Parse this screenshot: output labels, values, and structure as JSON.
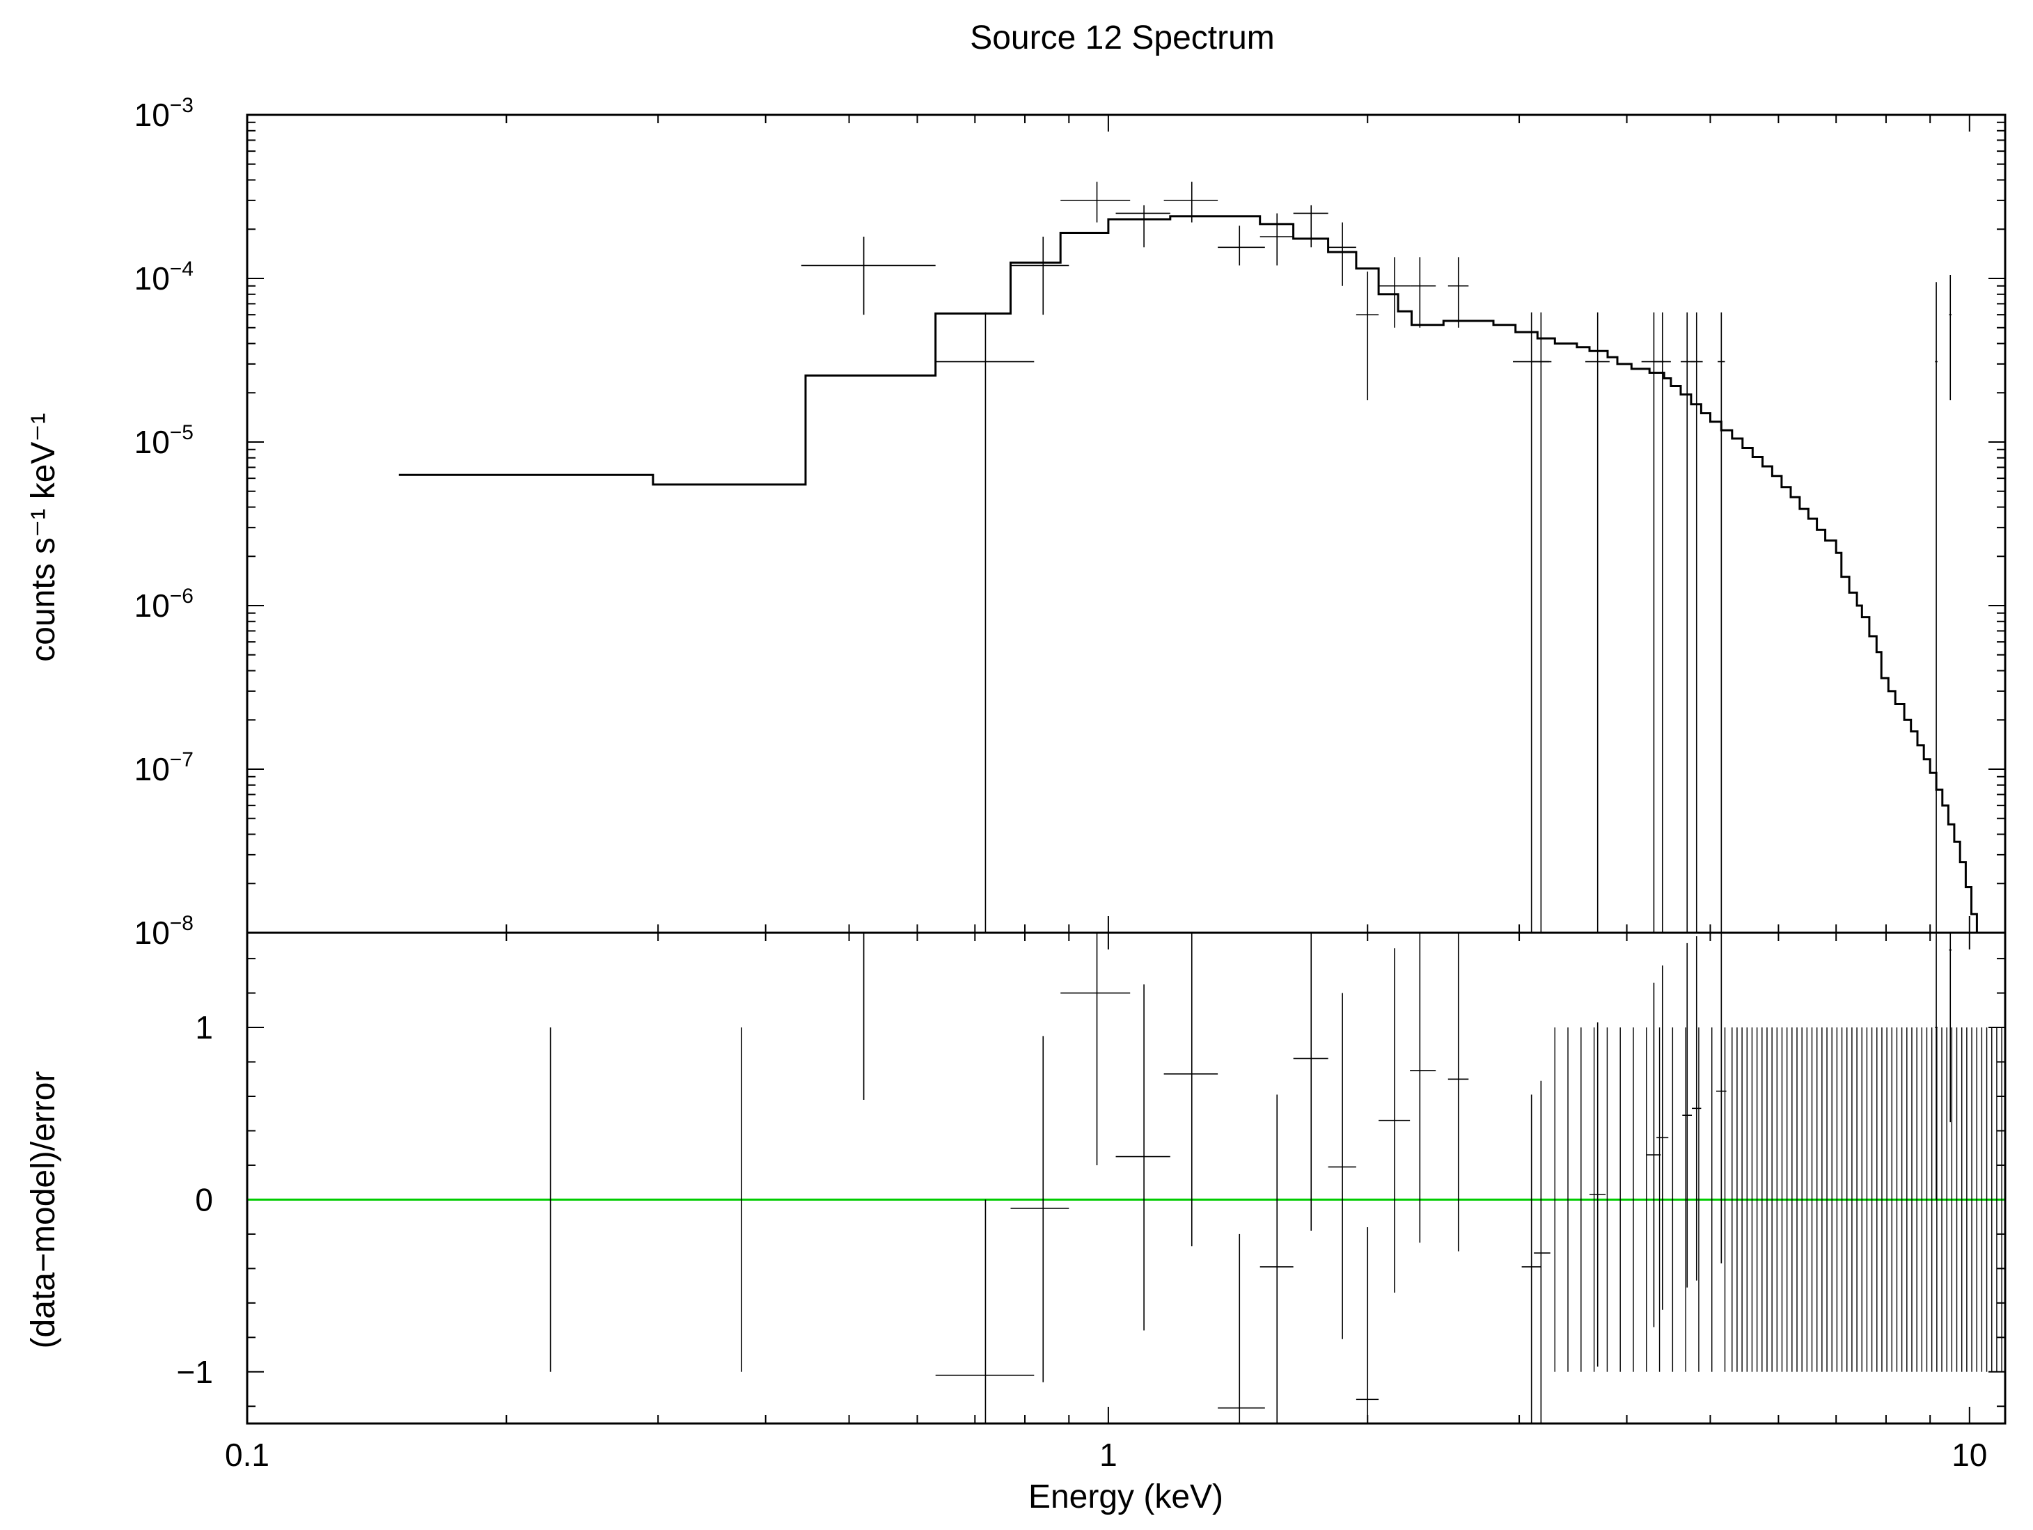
{
  "chart_data": {
    "type": "scatter",
    "title": "Source 12 Spectrum",
    "xlabel": "Energy (keV)",
    "x_scale": "log",
    "xlim": [
      0.1,
      11
    ],
    "x_ticks": [
      {
        "label": "0.1",
        "value": 0.1
      },
      {
        "label": "1",
        "value": 1
      },
      {
        "label": "10",
        "value": 10
      }
    ],
    "top_panel": {
      "ylabel": "counts s⁻¹ keV⁻¹",
      "y_scale": "log",
      "ylim": [
        1e-08,
        0.001
      ],
      "y_ticks": [
        {
          "base": "10",
          "exp": "−3",
          "value": 0.001
        },
        {
          "base": "10",
          "exp": "−4",
          "value": 0.0001
        },
        {
          "base": "10",
          "exp": "−5",
          "value": 1e-05
        },
        {
          "base": "10",
          "exp": "−6",
          "value": 1e-06
        },
        {
          "base": "10",
          "exp": "−7",
          "value": 1e-07
        },
        {
          "base": "10",
          "exp": "−8",
          "value": 1e-08
        }
      ],
      "data": [
        {
          "x": 0.52,
          "xlo": 0.44,
          "xhi": 0.63,
          "y": 0.00012,
          "ylo": 6e-05,
          "yhi": 0.00018
        },
        {
          "x": 0.72,
          "xlo": 0.63,
          "xhi": 0.82,
          "y": 3.1e-05,
          "ylo": 1e-08,
          "yhi": 6.2e-05
        },
        {
          "x": 0.84,
          "xlo": 0.77,
          "xhi": 0.9,
          "y": 0.00012,
          "ylo": 6e-05,
          "yhi": 0.00018
        },
        {
          "x": 0.97,
          "xlo": 0.88,
          "xhi": 1.06,
          "y": 0.0003,
          "ylo": 0.00022,
          "yhi": 0.00039
        },
        {
          "x": 1.1,
          "xlo": 1.02,
          "xhi": 1.18,
          "y": 0.00025,
          "ylo": 0.000155,
          "yhi": 0.00028
        },
        {
          "x": 1.25,
          "xlo": 1.16,
          "xhi": 1.34,
          "y": 0.0003,
          "ylo": 0.00022,
          "yhi": 0.00039
        },
        {
          "x": 1.42,
          "xlo": 1.34,
          "xhi": 1.52,
          "y": 0.000155,
          "ylo": 0.00012,
          "yhi": 0.00021
        },
        {
          "x": 1.57,
          "xlo": 1.5,
          "xhi": 1.64,
          "y": 0.00018,
          "ylo": 0.00012,
          "yhi": 0.00025
        },
        {
          "x": 1.72,
          "xlo": 1.64,
          "xhi": 1.8,
          "y": 0.00025,
          "ylo": 0.000155,
          "yhi": 0.00028
        },
        {
          "x": 1.87,
          "xlo": 1.8,
          "xhi": 1.94,
          "y": 0.000155,
          "ylo": 9e-05,
          "yhi": 0.00022
        },
        {
          "x": 2.0,
          "xlo": 1.94,
          "xhi": 2.06,
          "y": 6e-05,
          "ylo": 1.8e-05,
          "yhi": 0.00011
        },
        {
          "x": 2.15,
          "xlo": 2.06,
          "xhi": 2.24,
          "y": 9e-05,
          "ylo": 5e-05,
          "yhi": 0.000135
        },
        {
          "x": 2.3,
          "xlo": 2.24,
          "xhi": 2.4,
          "y": 9e-05,
          "ylo": 5e-05,
          "yhi": 0.000135
        },
        {
          "x": 2.55,
          "xlo": 2.48,
          "xhi": 2.62,
          "y": 9e-05,
          "ylo": 5e-05,
          "yhi": 0.000135
        },
        {
          "x": 3.1,
          "xlo": 2.95,
          "xhi": 3.25,
          "y": 3.1e-05,
          "ylo": 1e-08,
          "yhi": 6.2e-05
        },
        {
          "x": 3.18,
          "xlo": 3.1,
          "xhi": 3.27,
          "y": 3.1e-05,
          "ylo": 1e-08,
          "yhi": 6.2e-05
        },
        {
          "x": 3.7,
          "xlo": 3.58,
          "xhi": 3.82,
          "y": 3.1e-05,
          "ylo": 1e-08,
          "yhi": 6.2e-05
        },
        {
          "x": 4.3,
          "xlo": 4.16,
          "xhi": 4.42,
          "y": 3.1e-05,
          "ylo": 1e-08,
          "yhi": 6.2e-05
        },
        {
          "x": 4.4,
          "xlo": 4.3,
          "xhi": 4.5,
          "y": 3.1e-05,
          "ylo": 1e-08,
          "yhi": 6.2e-05
        },
        {
          "x": 4.7,
          "xlo": 4.62,
          "xhi": 4.8,
          "y": 3.1e-05,
          "ylo": 1e-08,
          "yhi": 6.2e-05
        },
        {
          "x": 4.82,
          "xlo": 4.74,
          "xhi": 4.9,
          "y": 3.1e-05,
          "ylo": 1e-08,
          "yhi": 6.2e-05
        },
        {
          "x": 5.15,
          "xlo": 5.1,
          "xhi": 5.2,
          "y": 3.1e-05,
          "ylo": 1e-08,
          "yhi": 6.2e-05
        },
        {
          "x": 9.15,
          "xlo": 9.12,
          "xhi": 9.18,
          "y": 3.1e-05,
          "ylo": 1e-08,
          "yhi": 9.5e-05
        },
        {
          "x": 9.5,
          "xlo": 9.47,
          "xhi": 9.53,
          "y": 6e-05,
          "ylo": 1.8e-05,
          "yhi": 0.000105
        }
      ],
      "model_step": [
        [
          0.15,
          6.3e-06
        ],
        [
          0.296,
          6.3e-06
        ],
        [
          0.296,
          5.5e-06
        ],
        [
          0.445,
          5.5e-06
        ],
        [
          0.445,
          2.55e-05
        ],
        [
          0.63,
          2.55e-05
        ],
        [
          0.63,
          6.1e-05
        ],
        [
          0.77,
          6.1e-05
        ],
        [
          0.77,
          0.000125
        ],
        [
          0.88,
          0.000125
        ],
        [
          0.88,
          0.00019
        ],
        [
          1.0,
          0.00019
        ],
        [
          1.0,
          0.00023
        ],
        [
          1.18,
          0.00023
        ],
        [
          1.18,
          0.00024
        ],
        [
          1.5,
          0.00024
        ],
        [
          1.5,
          0.000215
        ],
        [
          1.64,
          0.000215
        ],
        [
          1.64,
          0.000175
        ],
        [
          1.8,
          0.000175
        ],
        [
          1.8,
          0.000145
        ],
        [
          1.94,
          0.000145
        ],
        [
          1.94,
          0.000115
        ],
        [
          2.06,
          0.000115
        ],
        [
          2.06,
          8e-05
        ],
        [
          2.17,
          8e-05
        ],
        [
          2.17,
          6.3e-05
        ],
        [
          2.25,
          6.3e-05
        ],
        [
          2.25,
          5.2e-05
        ],
        [
          2.45,
          5.2e-05
        ],
        [
          2.45,
          5.5e-05
        ],
        [
          2.8,
          5.5e-05
        ],
        [
          2.8,
          5.2e-05
        ],
        [
          2.97,
          5.2e-05
        ],
        [
          2.97,
          4.7e-05
        ],
        [
          3.15,
          4.7e-05
        ],
        [
          3.15,
          4.3e-05
        ],
        [
          3.3,
          4.3e-05
        ],
        [
          3.3,
          4e-05
        ],
        [
          3.5,
          4e-05
        ],
        [
          3.5,
          3.8e-05
        ],
        [
          3.62,
          3.8e-05
        ],
        [
          3.62,
          3.6e-05
        ],
        [
          3.8,
          3.6e-05
        ],
        [
          3.8,
          3.3e-05
        ],
        [
          3.9,
          3.3e-05
        ],
        [
          3.9,
          3e-05
        ],
        [
          4.05,
          3e-05
        ],
        [
          4.05,
          2.8e-05
        ],
        [
          4.25,
          2.8e-05
        ],
        [
          4.25,
          2.65e-05
        ],
        [
          4.42,
          2.65e-05
        ],
        [
          4.42,
          2.45e-05
        ],
        [
          4.5,
          2.45e-05
        ],
        [
          4.5,
          2.2e-05
        ],
        [
          4.62,
          2.2e-05
        ],
        [
          4.62,
          1.95e-05
        ],
        [
          4.75,
          1.95e-05
        ],
        [
          4.75,
          1.7e-05
        ],
        [
          4.88,
          1.7e-05
        ],
        [
          4.88,
          1.5e-05
        ],
        [
          5.0,
          1.5e-05
        ],
        [
          5.0,
          1.33e-05
        ],
        [
          5.15,
          1.33e-05
        ],
        [
          5.15,
          1.18e-05
        ],
        [
          5.3,
          1.18e-05
        ],
        [
          5.3,
          1.05e-05
        ],
        [
          5.45,
          1.05e-05
        ],
        [
          5.45,
          9.2e-06
        ],
        [
          5.6,
          9.2e-06
        ],
        [
          5.6,
          8.1e-06
        ],
        [
          5.75,
          8.1e-06
        ],
        [
          5.75,
          7.1e-06
        ],
        [
          5.9,
          7.1e-06
        ],
        [
          5.9,
          6.2e-06
        ],
        [
          6.05,
          6.2e-06
        ],
        [
          6.05,
          5.3e-06
        ],
        [
          6.2,
          5.3e-06
        ],
        [
          6.2,
          4.6e-06
        ],
        [
          6.35,
          4.6e-06
        ],
        [
          6.35,
          3.9e-06
        ],
        [
          6.5,
          3.9e-06
        ],
        [
          6.5,
          3.4e-06
        ],
        [
          6.65,
          3.4e-06
        ],
        [
          6.65,
          2.9e-06
        ],
        [
          6.8,
          2.9e-06
        ],
        [
          6.8,
          2.5e-06
        ],
        [
          7.0,
          2.5e-06
        ],
        [
          7.0,
          2.1e-06
        ],
        [
          7.1,
          2.1e-06
        ],
        [
          7.1,
          1.5e-06
        ],
        [
          7.25,
          1.5e-06
        ],
        [
          7.25,
          1.2e-06
        ],
        [
          7.4,
          1.2e-06
        ],
        [
          7.4,
          1e-06
        ],
        [
          7.5,
          1e-06
        ],
        [
          7.5,
          8.5e-07
        ],
        [
          7.65,
          8.5e-07
        ],
        [
          7.65,
          6.5e-07
        ],
        [
          7.8,
          6.5e-07
        ],
        [
          7.8,
          5.2e-07
        ],
        [
          7.9,
          5.2e-07
        ],
        [
          7.9,
          3.6e-07
        ],
        [
          8.05,
          3.6e-07
        ],
        [
          8.05,
          3e-07
        ],
        [
          8.2,
          3e-07
        ],
        [
          8.2,
          2.5e-07
        ],
        [
          8.4,
          2.5e-07
        ],
        [
          8.4,
          2e-07
        ],
        [
          8.55,
          2e-07
        ],
        [
          8.55,
          1.7e-07
        ],
        [
          8.7,
          1.7e-07
        ],
        [
          8.7,
          1.4e-07
        ],
        [
          8.85,
          1.4e-07
        ],
        [
          8.85,
          1.15e-07
        ],
        [
          9.0,
          1.15e-07
        ],
        [
          9.0,
          9.5e-08
        ],
        [
          9.15,
          9.5e-08
        ],
        [
          9.15,
          7.5e-08
        ],
        [
          9.3,
          7.5e-08
        ],
        [
          9.3,
          6e-08
        ],
        [
          9.45,
          6e-08
        ],
        [
          9.45,
          4.6e-08
        ],
        [
          9.6,
          4.6e-08
        ],
        [
          9.6,
          3.6e-08
        ],
        [
          9.75,
          3.6e-08
        ],
        [
          9.75,
          2.7e-08
        ],
        [
          9.9,
          2.7e-08
        ],
        [
          9.9,
          1.9e-08
        ],
        [
          10.05,
          1.9e-08
        ],
        [
          10.05,
          1.3e-08
        ],
        [
          10.2,
          1.3e-08
        ],
        [
          10.2,
          1e-08
        ]
      ]
    },
    "bottom_panel": {
      "ylabel": "(data−model)/error",
      "ylim": [
        -1.3,
        1.55
      ],
      "y_ticks": [
        {
          "label": "1",
          "value": 1
        },
        {
          "label": "0",
          "value": 0
        },
        {
          "label": "−1",
          "value": -1
        }
      ],
      "zero_line_color": "#00cc00",
      "residuals": [
        {
          "x": 0.225,
          "y": 0.0,
          "ylo": -1.0,
          "yhi": 1.0,
          "xlo": 0.225,
          "xhi": 0.225
        },
        {
          "x": 0.375,
          "y": 0.0,
          "ylo": -1.0,
          "yhi": 1.0,
          "xlo": 0.375,
          "xhi": 0.375
        },
        {
          "x": 0.52,
          "y": 1.6,
          "ylo": 0.58,
          "yhi": 1.6,
          "xlo": 0.44,
          "xhi": 0.63
        },
        {
          "x": 0.72,
          "y": -1.02,
          "ylo": -1.3,
          "yhi": 0.0,
          "xlo": 0.63,
          "xhi": 0.82
        },
        {
          "x": 0.84,
          "y": -0.05,
          "ylo": -1.06,
          "yhi": 0.95,
          "xlo": 0.77,
          "xhi": 0.9
        },
        {
          "x": 0.97,
          "y": 1.2,
          "ylo": 0.2,
          "yhi": 1.55,
          "xlo": 0.88,
          "xhi": 1.06
        },
        {
          "x": 1.1,
          "y": 0.25,
          "ylo": -0.76,
          "yhi": 1.25,
          "xlo": 1.02,
          "xhi": 1.18
        },
        {
          "x": 1.25,
          "y": 0.73,
          "ylo": -0.27,
          "yhi": 1.55,
          "xlo": 1.16,
          "xhi": 1.34
        },
        {
          "x": 1.42,
          "y": -1.21,
          "ylo": -1.3,
          "yhi": -0.2,
          "xlo": 1.34,
          "xhi": 1.52
        },
        {
          "x": 1.57,
          "y": -0.39,
          "ylo": -1.3,
          "yhi": 0.61,
          "xlo": 1.5,
          "xhi": 1.64
        },
        {
          "x": 1.72,
          "y": 0.82,
          "ylo": -0.18,
          "yhi": 1.55,
          "xlo": 1.64,
          "xhi": 1.8
        },
        {
          "x": 1.87,
          "y": 0.19,
          "ylo": -0.81,
          "yhi": 1.2,
          "xlo": 1.8,
          "xhi": 1.94
        },
        {
          "x": 2.0,
          "y": -1.16,
          "ylo": -1.3,
          "yhi": -0.16,
          "xlo": 1.94,
          "xhi": 2.06
        },
        {
          "x": 2.15,
          "y": 0.46,
          "ylo": -0.54,
          "yhi": 1.46,
          "xlo": 2.06,
          "xhi": 2.24
        },
        {
          "x": 2.3,
          "y": 0.75,
          "ylo": -0.25,
          "yhi": 1.55,
          "xlo": 2.24,
          "xhi": 2.4
        },
        {
          "x": 2.55,
          "y": 0.7,
          "ylo": -0.3,
          "yhi": 1.55,
          "xlo": 2.48,
          "xhi": 2.62
        },
        {
          "x": 3.1,
          "y": -0.39,
          "ylo": -1.3,
          "yhi": 0.61,
          "xlo": 3.02,
          "xhi": 3.18
        },
        {
          "x": 3.18,
          "y": -0.31,
          "ylo": -1.3,
          "yhi": 0.69,
          "xlo": 3.12,
          "xhi": 3.26
        },
        {
          "x": 3.7,
          "y": 0.03,
          "ylo": -0.97,
          "yhi": 1.03,
          "xlo": 3.62,
          "xhi": 3.78
        },
        {
          "x": 4.3,
          "y": 0.26,
          "ylo": -0.74,
          "yhi": 1.26,
          "xlo": 4.22,
          "xhi": 4.38
        },
        {
          "x": 4.4,
          "y": 0.36,
          "ylo": -0.64,
          "yhi": 1.36,
          "xlo": 4.33,
          "xhi": 4.47
        },
        {
          "x": 4.7,
          "y": 0.49,
          "ylo": -0.51,
          "yhi": 1.49,
          "xlo": 4.64,
          "xhi": 4.76
        },
        {
          "x": 4.82,
          "y": 0.53,
          "ylo": -0.47,
          "yhi": 1.53,
          "xlo": 4.76,
          "xhi": 4.88
        },
        {
          "x": 5.15,
          "y": 0.63,
          "ylo": -0.37,
          "yhi": 1.55,
          "xlo": 5.08,
          "xhi": 5.22
        },
        {
          "x": 9.15,
          "y": 1.0,
          "ylo": 0.0,
          "yhi": 1.55,
          "xlo": 9.12,
          "xhi": 9.18
        },
        {
          "x": 9.5,
          "y": 1.45,
          "ylo": 0.45,
          "yhi": 1.55,
          "xlo": 9.47,
          "xhi": 9.53
        }
      ],
      "residual_band": {
        "x_start": 5.3,
        "x_end": 10.9,
        "count": 55,
        "ylo": -1.0,
        "yhi": 1.0
      },
      "residual_band_low": {
        "x_start": 3.3,
        "x_end": 5.2,
        "count": 14,
        "ylo": -1.0,
        "yhi": 1.0
      }
    }
  }
}
